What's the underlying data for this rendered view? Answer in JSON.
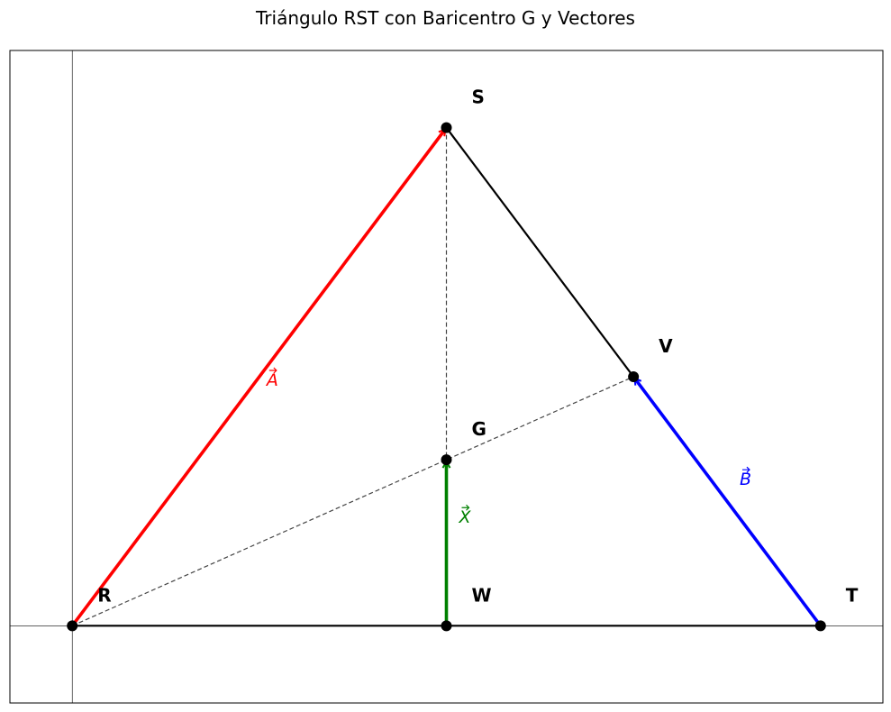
{
  "title": "Triángulo RST con Baricentro G y Vectores",
  "points": {
    "R": {
      "label": "R",
      "x": 0,
      "y": 0
    },
    "S": {
      "label": "S",
      "x": 3,
      "y": 4
    },
    "T": {
      "label": "T",
      "x": 6,
      "y": 0
    },
    "V": {
      "label": "V",
      "x": 4.5,
      "y": 2
    },
    "G": {
      "label": "G",
      "x": 3,
      "y": 1.333
    },
    "W": {
      "label": "W",
      "x": 3,
      "y": 0
    }
  },
  "vectors": {
    "A": {
      "label": "A",
      "from": "R",
      "to": "S",
      "color": "#ff0000"
    },
    "B": {
      "label": "B",
      "from": "T",
      "to": "V",
      "color": "#0000ff"
    },
    "X": {
      "label": "X",
      "from": "W",
      "to": "G",
      "color": "#008000"
    }
  },
  "axes": {
    "xlim": [
      -0.5,
      6.5
    ],
    "ylim": [
      -0.62,
      4.62
    ],
    "show_axis_lines": true
  },
  "colors": {
    "edge": "#000000",
    "dashed": "#444444",
    "point": "#000000"
  }
}
